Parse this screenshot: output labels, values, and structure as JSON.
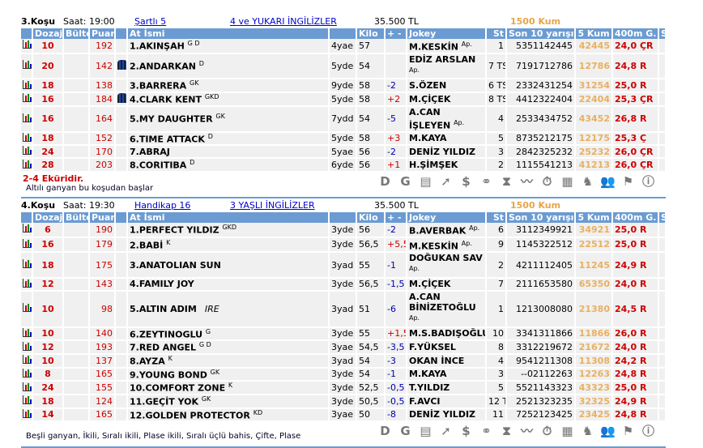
{
  "columns": [
    "",
    "Dozaj",
    "Bülten",
    "Puan",
    "",
    "At İsmi",
    "",
    "Kilo",
    "+ -",
    "Jokey",
    "St",
    "Son 10 yarışı",
    "5 Kum",
    "400m G.",
    "S"
  ],
  "icons": [
    "d-icon",
    "g-icon",
    "form-icon",
    "trend-icon",
    "dollar-icon",
    "binoculars-icon",
    "hourglass-icon",
    "line-chart-icon",
    "stopwatch-icon",
    "calculator-icon",
    "horse-icon",
    "people-icon",
    "jockey-icon",
    "info-icon"
  ],
  "icon_glyphs": [
    "D",
    "G",
    "▤",
    "➚",
    "$",
    "⚭",
    "⧗",
    "〰",
    "⏱",
    "▦",
    "♞",
    "👥",
    "⚑",
    "ⓘ"
  ],
  "races": [
    {
      "no": "3.Koşu",
      "saat": "Saat: 19:00",
      "type": "Şartlı  5",
      "group": "4 ve YUKARI İNGİLİZLER",
      "prize": "35.500 TL",
      "track": "1500 Kum",
      "note1": "2-4 Eküridir.",
      "note2": "Altılı ganyan bu koşudan başlar",
      "rows": [
        {
          "doz": "10",
          "puan": "192",
          "silk": false,
          "name": "1.AKINŞAH",
          "sup": "G D",
          "age": "4yae",
          "kilo": "57",
          "pm": "",
          "jokey": "M.KESKİN",
          "jsup": "Ap.",
          "st": "1",
          "son": "5351142445",
          "kum": "42445",
          "g": "24,0 ÇR"
        },
        {
          "doz": "20",
          "puan": "142",
          "silk": true,
          "name": "2.ANDARKAN",
          "sup": "D",
          "age": "5yde",
          "kilo": "54",
          "pm": "",
          "jokey": "EDİZ ARSLAN",
          "jsup": "Ap.",
          "st": "7 TS",
          "son": "7191712786",
          "kum": "12786",
          "g": "24,8 R"
        },
        {
          "doz": "18",
          "puan": "138",
          "silk": false,
          "name": "3.BARRERA",
          "sup": "GK",
          "age": "9yde",
          "kilo": "58",
          "pm": "-2",
          "jokey": "S.ÖZEN",
          "jsup": "",
          "st": "6 TS",
          "son": "2332431254",
          "kum": "31254",
          "g": "25,0 R"
        },
        {
          "doz": "16",
          "puan": "184",
          "silk": true,
          "name": "4.CLARK KENT",
          "sup": "GKD",
          "age": "5yde",
          "kilo": "58",
          "pm": "+2",
          "jokey": "M.ÇİÇEK",
          "jsup": "",
          "st": "8 TS",
          "son": "4412322404",
          "kum": "22404",
          "g": "25,3 ÇR"
        },
        {
          "doz": "16",
          "puan": "164",
          "silk": false,
          "name": "5.MY DAUGHTER",
          "sup": "GK",
          "age": "7ydd",
          "kilo": "54",
          "pm": "-5",
          "jokey": "A.CAN İŞLEYEN",
          "jsup": "Ap.",
          "st": "4",
          "son": "2533434752",
          "kum": "43452",
          "g": "26,8 R",
          "tall": true
        },
        {
          "doz": "18",
          "puan": "152",
          "silk": false,
          "name": "6.TIME ATTACK",
          "sup": "D",
          "age": "5yde",
          "kilo": "58",
          "pm": "+3",
          "jokey": "M.KAYA",
          "jsup": "",
          "st": "5",
          "son": "8735212175",
          "kum": "12175",
          "g": "25,3 Ç"
        },
        {
          "doz": "24",
          "puan": "170",
          "silk": false,
          "name": "7.ABRAJ",
          "sup": "",
          "age": "5yae",
          "kilo": "56",
          "pm": "-2",
          "jokey": "DENİZ YILDIZ",
          "jsup": "",
          "st": "3",
          "son": "2842325232",
          "kum": "25232",
          "g": "26,0 ÇR"
        },
        {
          "doz": "28",
          "puan": "203",
          "silk": false,
          "name": "8.CORITIBA",
          "sup": "D",
          "age": "6yde",
          "kilo": "56",
          "pm": "+1",
          "jokey": "H.ŞİMŞEK",
          "jsup": "",
          "st": "2",
          "son": "1115541213",
          "kum": "41213",
          "g": "26,0 ÇR"
        }
      ]
    },
    {
      "no": "4.Koşu",
      "saat": "Saat: 19:30",
      "type": "Handikap  16",
      "group": "3 YAŞLI İNGİLİZLER",
      "prize": "35.500 TL",
      "track": "1500 Kum",
      "note1": "",
      "note2": "Beşli ganyan, İkili, Sıralı ikili, Plase ikili, Sıralı üçlü bahis, Çifte, Plase",
      "rows": [
        {
          "doz": "6",
          "puan": "190",
          "name": "1.PERFECT YILDIZ",
          "sup": "GKD",
          "age": "3yde",
          "kilo": "56",
          "pm": "-2",
          "jokey": "B.AVERBAK",
          "jsup": "Ap.",
          "st": "6",
          "son": "3112349921",
          "kum": "34921",
          "g": "25,0 R"
        },
        {
          "doz": "16",
          "puan": "179",
          "name": "2.BABİ",
          "sup": "K",
          "age": "3yde",
          "kilo": "56,5",
          "pm": "+5,5",
          "jokey": "M.KESKİN",
          "jsup": "Ap.",
          "st": "9",
          "son": "1145322512",
          "kum": "22512",
          "g": "25,0 R"
        },
        {
          "doz": "18",
          "puan": "175",
          "name": "3.ANATOLIAN SUN",
          "sup": "",
          "age": "3yad",
          "kilo": "55",
          "pm": "-1",
          "jokey": "DOĞUKAN SAV",
          "jsup": "Ap.",
          "st": "2",
          "son": "4211112405",
          "kum": "11245",
          "g": "24,9 R",
          "tall": true
        },
        {
          "doz": "12",
          "puan": "143",
          "name": "4.FAMILY JOY",
          "sup": "",
          "age": "3yde",
          "kilo": "56,5",
          "pm": "-1,5",
          "jokey": "M.ÇİÇEK",
          "jsup": "",
          "st": "7",
          "son": "2111653580",
          "kum": "65350",
          "g": "24,0 R"
        },
        {
          "doz": "10",
          "puan": "98",
          "name": "5.ALTIN ADIM",
          "ire": "IRE",
          "sup": "",
          "age": "3yad",
          "kilo": "51",
          "pm": "-6",
          "jokey": "A.CAN BİNİZETOĞLU",
          "jsup": "Ap.",
          "st": "1",
          "son": "1213008080",
          "kum": "21380",
          "g": "24,5 R",
          "tall": true
        },
        {
          "doz": "10",
          "puan": "140",
          "name": "6.ZEYTINOGLU",
          "sup": "G",
          "age": "3yde",
          "kilo": "55",
          "pm": "+1,5",
          "jokey": "M.S.BADIŞOĞLU",
          "jsup": "",
          "st": "10",
          "son": "3341311866",
          "kum": "11866",
          "g": "26,0 R"
        },
        {
          "doz": "12",
          "puan": "193",
          "name": "7.RED ANGEL",
          "sup": "G D",
          "age": "3yae",
          "kilo": "54,5",
          "pm": "-3,5",
          "jokey": "F.YÜKSEL",
          "jsup": "",
          "st": "8",
          "son": "3312219672",
          "kum": "21672",
          "g": "24,0 R"
        },
        {
          "doz": "10",
          "puan": "137",
          "name": "8.AYZA",
          "sup": "K",
          "age": "3yad",
          "kilo": "54",
          "pm": "-3",
          "jokey": "OKAN İNCE",
          "jsup": "",
          "st": "4",
          "son": "9541211308",
          "kum": "11308",
          "g": "24,2 R"
        },
        {
          "doz": "8",
          "puan": "165",
          "name": "9.YOUNG BOND",
          "sup": "GK",
          "age": "3yde",
          "kilo": "54",
          "pm": "-1",
          "jokey": "M.KAYA",
          "jsup": "",
          "st": "3",
          "son": "--02112263",
          "kum": "12263",
          "g": "24,8 R"
        },
        {
          "doz": "24",
          "puan": "155",
          "name": "10.COMFORT ZONE",
          "sup": "K",
          "age": "3yde",
          "kilo": "52,5",
          "pm": "-0,5",
          "jokey": "T.YILDIZ",
          "jsup": "",
          "st": "5",
          "son": "5521143323",
          "kum": "43323",
          "g": "25,0 R"
        },
        {
          "doz": "18",
          "puan": "124",
          "name": "11.GEÇİT YOK",
          "sup": "GK",
          "age": "3yde",
          "kilo": "50,5",
          "pm": "-0,5",
          "jokey": "F.AVCI",
          "jsup": "",
          "st": "12 TS",
          "son": "2521323235",
          "kum": "32325",
          "g": "24,9 R"
        },
        {
          "doz": "14",
          "puan": "165",
          "name": "12.GOLDEN PROTECTOR",
          "sup": "KD",
          "age": "3yae",
          "kilo": "50",
          "pm": "-8",
          "jokey": "DENİZ YILDIZ",
          "jsup": "",
          "st": "11",
          "son": "7252123425",
          "kum": "23425",
          "g": "24,8 R"
        }
      ]
    }
  ]
}
